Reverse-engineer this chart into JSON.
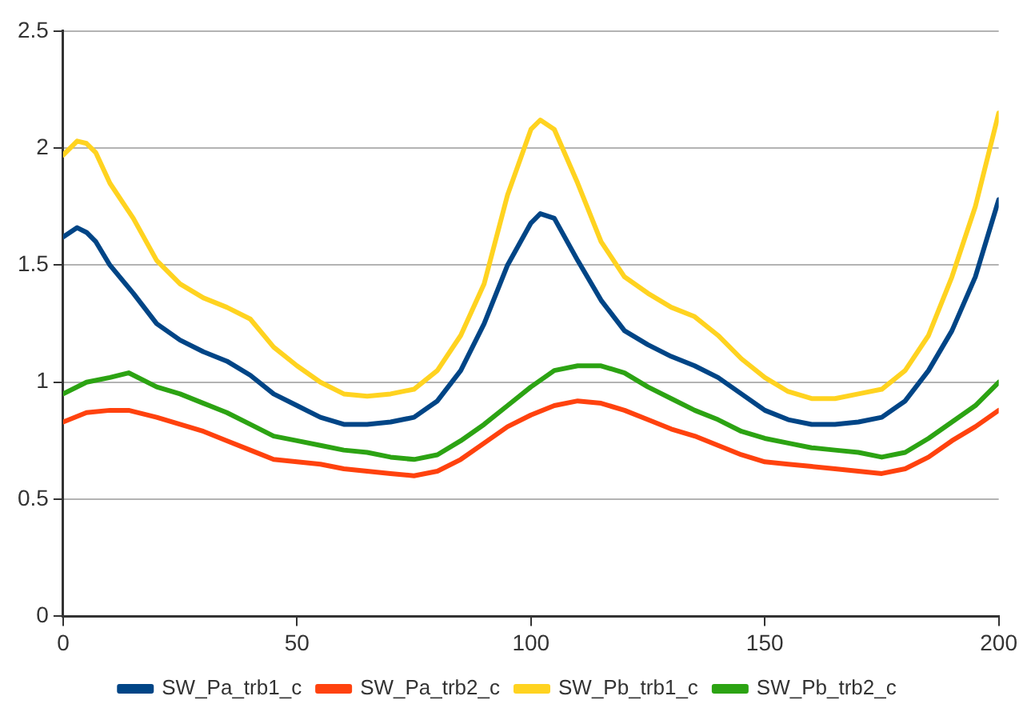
{
  "chart_data": {
    "type": "line",
    "xlim": [
      0,
      200
    ],
    "xticks": [
      0,
      50,
      100,
      150,
      200
    ],
    "ylim": [
      0,
      2.5
    ],
    "yticks": [
      0,
      0.5,
      1,
      1.5,
      2,
      2.5
    ],
    "grid": "y",
    "legend": "bottom",
    "marker": "none",
    "line_style": "solid",
    "series": [
      {
        "name": "SW_Pa_trb1_c",
        "color": "#004586",
        "x": [
          0,
          3,
          5,
          7,
          10,
          15,
          20,
          25,
          30,
          35,
          40,
          45,
          50,
          55,
          60,
          65,
          70,
          75,
          80,
          85,
          90,
          95,
          100,
          102,
          105,
          110,
          115,
          120,
          125,
          130,
          135,
          140,
          145,
          150,
          155,
          160,
          165,
          170,
          175,
          180,
          185,
          190,
          195,
          200
        ],
        "values": [
          1.62,
          1.66,
          1.64,
          1.6,
          1.5,
          1.38,
          1.25,
          1.18,
          1.13,
          1.09,
          1.03,
          0.95,
          0.9,
          0.85,
          0.82,
          0.82,
          0.83,
          0.85,
          0.92,
          1.05,
          1.25,
          1.5,
          1.68,
          1.72,
          1.7,
          1.52,
          1.35,
          1.22,
          1.16,
          1.11,
          1.07,
          1.02,
          0.95,
          0.88,
          0.84,
          0.82,
          0.82,
          0.83,
          0.85,
          0.92,
          1.05,
          1.22,
          1.45,
          1.78
        ]
      },
      {
        "name": "SW_Pa_trb2_c",
        "color": "#ff420e",
        "x": [
          0,
          5,
          10,
          14,
          20,
          25,
          30,
          35,
          40,
          45,
          50,
          55,
          60,
          65,
          70,
          75,
          80,
          85,
          90,
          95,
          100,
          105,
          110,
          115,
          120,
          125,
          130,
          135,
          140,
          145,
          150,
          155,
          160,
          165,
          170,
          175,
          180,
          185,
          190,
          195,
          200
        ],
        "values": [
          0.83,
          0.87,
          0.88,
          0.88,
          0.85,
          0.82,
          0.79,
          0.75,
          0.71,
          0.67,
          0.66,
          0.65,
          0.63,
          0.62,
          0.61,
          0.6,
          0.62,
          0.67,
          0.74,
          0.81,
          0.86,
          0.9,
          0.92,
          0.91,
          0.88,
          0.84,
          0.8,
          0.77,
          0.73,
          0.69,
          0.66,
          0.65,
          0.64,
          0.63,
          0.62,
          0.61,
          0.63,
          0.68,
          0.75,
          0.81,
          0.88
        ]
      },
      {
        "name": "SW_Pb_trb1_c",
        "color": "#ffd320",
        "x": [
          0,
          3,
          5,
          7,
          10,
          15,
          20,
          25,
          30,
          35,
          40,
          45,
          50,
          55,
          60,
          65,
          70,
          75,
          80,
          85,
          90,
          95,
          100,
          102,
          105,
          110,
          115,
          120,
          125,
          130,
          135,
          140,
          145,
          150,
          155,
          160,
          165,
          170,
          175,
          180,
          185,
          190,
          195,
          200
        ],
        "values": [
          1.97,
          2.03,
          2.02,
          1.98,
          1.85,
          1.7,
          1.52,
          1.42,
          1.36,
          1.32,
          1.27,
          1.15,
          1.07,
          1.0,
          0.95,
          0.94,
          0.95,
          0.97,
          1.05,
          1.2,
          1.42,
          1.8,
          2.08,
          2.12,
          2.08,
          1.85,
          1.6,
          1.45,
          1.38,
          1.32,
          1.28,
          1.2,
          1.1,
          1.02,
          0.96,
          0.93,
          0.93,
          0.95,
          0.97,
          1.05,
          1.2,
          1.45,
          1.75,
          2.15
        ]
      },
      {
        "name": "SW_Pb_trb2_c",
        "color": "#2ca313",
        "x": [
          0,
          5,
          10,
          14,
          20,
          25,
          30,
          35,
          40,
          45,
          50,
          55,
          60,
          65,
          70,
          75,
          80,
          85,
          90,
          95,
          100,
          105,
          110,
          115,
          120,
          125,
          130,
          135,
          140,
          145,
          150,
          155,
          160,
          165,
          170,
          175,
          180,
          185,
          190,
          195,
          200
        ],
        "values": [
          0.95,
          1.0,
          1.02,
          1.04,
          0.98,
          0.95,
          0.91,
          0.87,
          0.82,
          0.77,
          0.75,
          0.73,
          0.71,
          0.7,
          0.68,
          0.67,
          0.69,
          0.75,
          0.82,
          0.9,
          0.98,
          1.05,
          1.07,
          1.07,
          1.04,
          0.98,
          0.93,
          0.88,
          0.84,
          0.79,
          0.76,
          0.74,
          0.72,
          0.71,
          0.7,
          0.68,
          0.7,
          0.76,
          0.83,
          0.9,
          1.0
        ]
      }
    ]
  }
}
